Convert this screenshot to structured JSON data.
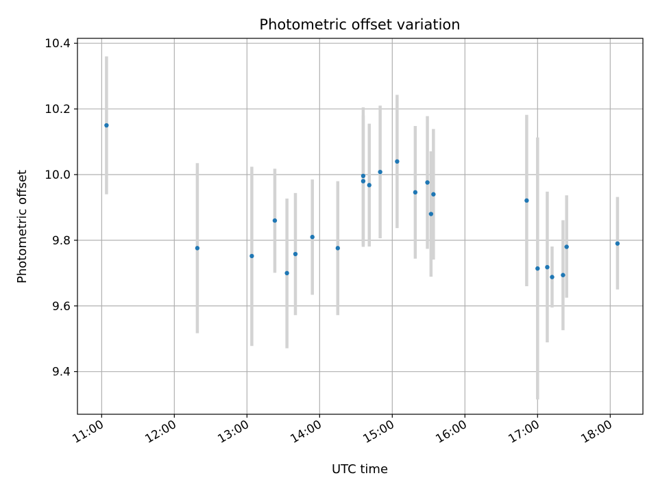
{
  "chart_data": {
    "type": "scatter",
    "title": "Photometric offset variation",
    "xlabel": "UTC time",
    "ylabel": "Photometric offset",
    "xlim": [
      "10:40",
      "18:27"
    ],
    "ylim": [
      9.27,
      10.415
    ],
    "grid": true,
    "x_ticks": [
      "11:00",
      "12:00",
      "13:00",
      "14:00",
      "15:00",
      "16:00",
      "17:00",
      "18:00"
    ],
    "y_ticks": [
      "9.4",
      "9.6",
      "9.8",
      "10.0",
      "10.2",
      "10.4"
    ],
    "series": [
      {
        "marker_color": "#1f77b4",
        "errorbar_color": "#d3d3d3",
        "points": [
          {
            "x": "11:04",
            "y": 10.15,
            "ylo": 9.94,
            "yhi": 10.36
          },
          {
            "x": "12:19",
            "y": 9.776,
            "ylo": 9.517,
            "yhi": 10.035
          },
          {
            "x": "13:04",
            "y": 9.752,
            "ylo": 9.478,
            "yhi": 10.024
          },
          {
            "x": "13:23",
            "y": 9.86,
            "ylo": 9.701,
            "yhi": 10.018
          },
          {
            "x": "13:33",
            "y": 9.7,
            "ylo": 9.471,
            "yhi": 9.927
          },
          {
            "x": "13:40",
            "y": 9.758,
            "ylo": 9.572,
            "yhi": 9.944
          },
          {
            "x": "13:54",
            "y": 9.81,
            "ylo": 9.634,
            "yhi": 9.985
          },
          {
            "x": "14:15",
            "y": 9.776,
            "ylo": 9.572,
            "yhi": 9.98
          },
          {
            "x": "14:36",
            "y": 9.98,
            "ylo": 9.78,
            "yhi": 10.18
          },
          {
            "x": "14:36",
            "y": 9.996,
            "ylo": 9.785,
            "yhi": 10.205
          },
          {
            "x": "14:41",
            "y": 9.968,
            "ylo": 9.781,
            "yhi": 10.155
          },
          {
            "x": "14:50",
            "y": 10.008,
            "ylo": 9.806,
            "yhi": 10.21
          },
          {
            "x": "15:04",
            "y": 10.04,
            "ylo": 9.837,
            "yhi": 10.243
          },
          {
            "x": "15:19",
            "y": 9.946,
            "ylo": 9.744,
            "yhi": 10.148
          },
          {
            "x": "15:29",
            "y": 9.976,
            "ylo": 9.774,
            "yhi": 10.178
          },
          {
            "x": "15:32",
            "y": 9.88,
            "ylo": 9.689,
            "yhi": 10.071
          },
          {
            "x": "15:34",
            "y": 9.94,
            "ylo": 9.741,
            "yhi": 10.139
          },
          {
            "x": "16:51",
            "y": 9.921,
            "ylo": 9.66,
            "yhi": 10.182
          },
          {
            "x": "17:00",
            "y": 9.714,
            "ylo": 9.315,
            "yhi": 10.113
          },
          {
            "x": "17:08",
            "y": 9.718,
            "ylo": 9.489,
            "yhi": 9.948
          },
          {
            "x": "17:12",
            "y": 9.688,
            "ylo": 9.595,
            "yhi": 9.781
          },
          {
            "x": "17:21",
            "y": 9.694,
            "ylo": 9.526,
            "yhi": 9.861
          },
          {
            "x": "17:24",
            "y": 9.78,
            "ylo": 9.625,
            "yhi": 9.937
          },
          {
            "x": "18:06",
            "y": 9.79,
            "ylo": 9.65,
            "yhi": 9.932
          }
        ]
      }
    ]
  }
}
